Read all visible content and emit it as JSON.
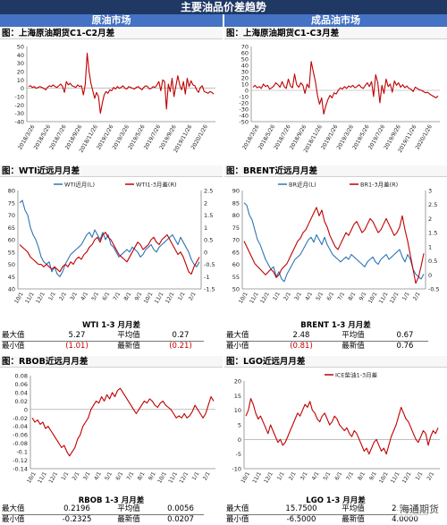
{
  "banner": "主要油品价差趋势",
  "columns": {
    "left": "原油市场",
    "right": "成品油市场"
  },
  "colors": {
    "red": "#c00000",
    "blue": "#2e75b6",
    "banner": "#1f3864",
    "header": "#4472c4"
  },
  "panels": {
    "p1": {
      "title": "图：上海原油期货C1-C2月差"
    },
    "p2": {
      "title": "图：上海原油期货C1-C3月差"
    },
    "p3": {
      "title": "图：WTI近远月月差"
    },
    "p4": {
      "title": "图：BRENT近远月月差"
    },
    "p5": {
      "title": "图：RBOB近远月月差"
    },
    "p6": {
      "title": "图：LGO近远月月差"
    }
  },
  "stats": {
    "wti": {
      "title": "WTI 1-3 月月差",
      "max_label": "最大值",
      "max": "5.27",
      "mean_label": "平均值",
      "mean": "0.27",
      "min_label": "最小值",
      "min": "(1.01)",
      "latest_label": "最新值",
      "latest": "(0.21)"
    },
    "brent": {
      "title": "BRENT 1-3 月月差",
      "max_label": "最大值",
      "max": "2.48",
      "mean_label": "平均值",
      "mean": "0.67",
      "min_label": "最小值",
      "min": "(0.81)",
      "latest_label": "最新值",
      "latest": "0.76"
    },
    "rbob": {
      "title": "RBOB 1-3 月月差",
      "max_label": "最大值",
      "max": "0.2196",
      "mean_label": "平均值",
      "mean": "0.0056",
      "min_label": "最小值",
      "min": "-0.2325",
      "latest_label": "最新值",
      "latest": "0.0207"
    },
    "lgo": {
      "title": "LGO 1-3 月月差",
      "max_label": "最大值",
      "max": "15.7500",
      "mean_label": "平均值",
      "mean": "2.5824",
      "min_label": "最小值",
      "min": "-6.5000",
      "latest_label": "最新值",
      "latest": "4.0000"
    }
  },
  "watermark": "海通期货",
  "chart_data": [
    {
      "id": "p1",
      "type": "line",
      "title": "图：上海原油期货C1-C2月差",
      "xlabels": [
        "2018/3/26",
        "2018/5/26",
        "2018/7/26",
        "2018/9/26",
        "2018/11/26",
        "2019/1/26",
        "2019/3/26",
        "2019/5/26",
        "2019/7/26",
        "2019/9/26",
        "2019/11/26",
        "2020/1/26"
      ],
      "ylim": [
        -40,
        50
      ],
      "yticks": [
        -40,
        -30,
        -20,
        -10,
        0,
        10,
        20,
        30,
        40,
        50
      ],
      "series": [
        {
          "color": "#c00000",
          "values": [
            2,
            3,
            1,
            2,
            0,
            1,
            2,
            1,
            0,
            -2,
            1,
            3,
            2,
            4,
            2,
            1,
            3,
            5,
            2,
            -5,
            8,
            4,
            6,
            3,
            2,
            1,
            4,
            2,
            3,
            -8,
            5,
            42,
            20,
            6,
            -3,
            -12,
            -5,
            -10,
            -30,
            -18,
            -8,
            -4,
            -6,
            -2,
            -3,
            1,
            -1,
            2,
            0,
            1,
            3,
            0,
            -1,
            2,
            1,
            0,
            -1,
            1,
            2,
            0,
            -2,
            1,
            3,
            2,
            -1,
            0,
            2,
            1,
            4,
            8,
            -3,
            10,
            8,
            -25,
            5,
            -4,
            12,
            -10,
            3,
            15,
            4,
            -2,
            8,
            -7,
            12,
            2,
            9,
            4,
            3,
            -2,
            -5,
            1,
            3,
            -4,
            -5,
            -6,
            -4,
            -5,
            -7
          ]
        }
      ]
    },
    {
      "id": "p2",
      "type": "line",
      "title": "图：上海原油期货C1-C3月差",
      "xlabels": [
        "2018/3/26",
        "2018/5/26",
        "2018/7/26",
        "2018/9/26",
        "2018/11/26",
        "2019/1/26",
        "2019/3/26",
        "2019/5/26",
        "2019/7/26",
        "2019/9/26",
        "2019/11/26",
        "2020/1/26"
      ],
      "ylim": [
        -50,
        70
      ],
      "yticks": [
        -50,
        -40,
        -30,
        -20,
        -10,
        0,
        10,
        20,
        30,
        40,
        50,
        60,
        70
      ],
      "series": [
        {
          "color": "#c00000",
          "values": [
            5,
            8,
            4,
            6,
            3,
            10,
            6,
            8,
            2,
            4,
            7,
            12,
            9,
            5,
            14,
            6,
            3,
            18,
            7,
            4,
            26,
            9,
            5,
            12,
            8,
            -5,
            10,
            4,
            46,
            30,
            14,
            -8,
            -22,
            -12,
            -38,
            -25,
            -15,
            -8,
            -12,
            -4,
            -6,
            0,
            4,
            2,
            6,
            3,
            7,
            5,
            8,
            4,
            6,
            9,
            5,
            3,
            8,
            12,
            6,
            14,
            -10,
            25,
            12,
            -20,
            8,
            -5,
            18,
            6,
            10,
            -3,
            15,
            8,
            12,
            5,
            9,
            4,
            7,
            3,
            2,
            -2,
            5,
            3,
            1,
            0,
            -2,
            -4,
            -3,
            -6,
            -8,
            -10,
            -12,
            -9
          ]
        }
      ]
    },
    {
      "id": "p3",
      "type": "line",
      "title": "图：WTI近远月月差",
      "xlabels": [
        "10/1",
        "11/1",
        "12/1",
        "1/1",
        "2/1",
        "3/1",
        "4/1",
        "5/1",
        "6/1",
        "7/1",
        "8/1",
        "9/1",
        "10/1",
        "11/1",
        "12/1",
        "1/1",
        "2/1"
      ],
      "ylim_left": [
        40,
        80
      ],
      "yticks_left": [
        40,
        45,
        50,
        55,
        60,
        65,
        70,
        75,
        80
      ],
      "ylim_right": [
        -1.5,
        2.5
      ],
      "yticks_right": [
        -1.5,
        -1,
        -0.5,
        0,
        0.5,
        1,
        1.5,
        2,
        2.5
      ],
      "legend": [
        "WTI近月(L)",
        "WTI1-3月差(R)"
      ],
      "legend_position": "top",
      "series": [
        {
          "name": "WTI近月(L)",
          "axis": "left",
          "color": "#2e75b6",
          "values": [
            75,
            76,
            72,
            70,
            65,
            62,
            60,
            57,
            53,
            51,
            50,
            51,
            47,
            49,
            46,
            45,
            47,
            50,
            52,
            54,
            55,
            56,
            57,
            58,
            60,
            62,
            63,
            61,
            64,
            62,
            60,
            63,
            60,
            62,
            58,
            57,
            55,
            53,
            54,
            55,
            56,
            55,
            57,
            56,
            55,
            53,
            54,
            56,
            57,
            58,
            56,
            55,
            57,
            58,
            59,
            60,
            61,
            62,
            60,
            58,
            61,
            59,
            57,
            55,
            52,
            50,
            49,
            51
          ]
        },
        {
          "name": "WTI1-3月差(R)",
          "axis": "right",
          "color": "#c00000",
          "values": [
            0.3,
            0.2,
            0.1,
            0,
            -0.2,
            -0.3,
            -0.4,
            -0.5,
            -0.5,
            -0.6,
            -0.5,
            -0.6,
            -0.7,
            -0.6,
            -0.7,
            -0.8,
            -0.6,
            -0.5,
            -0.6,
            -0.4,
            -0.5,
            -0.3,
            -0.2,
            -0.3,
            -0.1,
            0,
            0.2,
            0.3,
            0.5,
            0.6,
            0.4,
            0.7,
            0.8,
            0.6,
            0.5,
            0.3,
            0.1,
            -0.1,
            -0.2,
            -0.3,
            -0.4,
            -0.2,
            0,
            0.2,
            0.4,
            0.3,
            0.1,
            0.2,
            0.3,
            0.5,
            0.6,
            0.4,
            0.3,
            0.5,
            0.6,
            0.7,
            0.5,
            0.3,
            0.1,
            -0.1,
            0,
            -0.2,
            -0.5,
            -0.8,
            -0.9,
            -0.6,
            -0.4,
            -0.21
          ]
        }
      ]
    },
    {
      "id": "p4",
      "type": "line",
      "title": "图：BRENT近远月月差",
      "xlabels": [
        "10/1",
        "11/1",
        "12/1",
        "1/1",
        "2/1",
        "3/1",
        "4/1",
        "5/1",
        "6/1",
        "7/1",
        "8/1",
        "9/1",
        "10/1",
        "11/1",
        "12/1",
        "1/1",
        "2/1"
      ],
      "ylim_left": [
        50,
        90
      ],
      "yticks_left": [
        50,
        55,
        60,
        65,
        70,
        75,
        80,
        85,
        90
      ],
      "ylim_right": [
        -0.5,
        3
      ],
      "yticks_right": [
        -0.5,
        0,
        0.5,
        1,
        1.5,
        2,
        2.5,
        3
      ],
      "legend": [
        "BR近月(L)",
        "BR1-3月差(R)"
      ],
      "legend_position": "top",
      "series": [
        {
          "name": "BR近月(L)",
          "axis": "left",
          "color": "#2e75b6",
          "values": [
            85,
            84,
            80,
            78,
            74,
            70,
            68,
            65,
            62,
            60,
            58,
            59,
            55,
            57,
            54,
            53,
            56,
            58,
            60,
            62,
            63,
            64,
            66,
            68,
            70,
            71,
            69,
            72,
            70,
            68,
            71,
            68,
            66,
            64,
            63,
            62,
            61,
            62,
            63,
            62,
            64,
            63,
            62,
            61,
            60,
            59,
            61,
            62,
            63,
            61,
            60,
            62,
            63,
            64,
            62,
            63,
            64,
            65,
            66,
            63,
            61,
            64,
            62,
            58,
            56,
            55,
            54,
            56
          ]
        },
        {
          "name": "BR1-3月差(R)",
          "axis": "right",
          "color": "#c00000",
          "values": [
            1.2,
            1.0,
            0.8,
            0.6,
            0.4,
            0.3,
            0.2,
            0.1,
            0,
            0.1,
            0.2,
            0.1,
            -0.1,
            0,
            0.2,
            0.3,
            0.4,
            0.6,
            0.8,
            1.0,
            1.2,
            1.3,
            1.5,
            1.6,
            1.8,
            2.0,
            2.2,
            2.4,
            2.1,
            2.3,
            1.9,
            1.7,
            1.4,
            1.2,
            1.0,
            0.9,
            1.1,
            1.3,
            1.5,
            1.4,
            1.6,
            1.8,
            1.9,
            1.7,
            1.5,
            1.6,
            1.8,
            2.0,
            1.9,
            1.7,
            1.5,
            1.6,
            1.8,
            2.0,
            1.8,
            1.6,
            1.4,
            1.5,
            1.7,
            2.1,
            1.6,
            1.2,
            0.7,
            0.2,
            -0.3,
            -0.1,
            0.3,
            0.76
          ]
        }
      ]
    },
    {
      "id": "p5",
      "type": "line",
      "title": "图：RBOB近远月月差",
      "xlabels": [
        "10/1",
        "11/1",
        "12/1",
        "1/1",
        "2/1",
        "3/1",
        "4/1",
        "5/1",
        "6/1",
        "7/1",
        "8/1",
        "9/1",
        "10/1",
        "11/1",
        "12/1",
        "1/1",
        "2/1"
      ],
      "ylim": [
        -0.14,
        0.08
      ],
      "yticks": [
        -0.14,
        -0.12,
        -0.1,
        -0.08,
        -0.06,
        -0.04,
        -0.02,
        0,
        0.02,
        0.04,
        0.06,
        0.08
      ],
      "series": [
        {
          "color": "#c00000",
          "values": [
            -0.02,
            -0.03,
            -0.025,
            -0.035,
            -0.03,
            -0.045,
            -0.04,
            -0.05,
            -0.06,
            -0.07,
            -0.08,
            -0.09,
            -0.085,
            -0.1,
            -0.11,
            -0.1,
            -0.09,
            -0.07,
            -0.06,
            -0.04,
            -0.03,
            -0.02,
            0,
            0.01,
            0.02,
            0.015,
            0.03,
            0.02,
            0.035,
            0.025,
            0.04,
            0.03,
            0.045,
            0.05,
            0.04,
            0.03,
            0.02,
            0.01,
            0,
            -0.01,
            0,
            0.01,
            0.02,
            0.015,
            0.025,
            0.02,
            0.01,
            0.005,
            0.015,
            0.02,
            0.01,
            0.005,
            0,
            -0.01,
            -0.02,
            -0.015,
            -0.02,
            -0.01,
            -0.02,
            -0.015,
            -0.005,
            0.01,
            0,
            -0.01,
            -0.02,
            -0.01,
            0.01,
            0.03,
            0.02
          ]
        }
      ]
    },
    {
      "id": "p6",
      "type": "line",
      "title": "图：LGO近远月月差",
      "xlabels": [
        "10/1",
        "11/1",
        "12/1",
        "1/1",
        "2/1",
        "3/1",
        "4/1",
        "5/1",
        "6/1",
        "7/1",
        "8/1",
        "9/1",
        "10/1",
        "11/1",
        "12/1",
        "1/1",
        "2/1"
      ],
      "ylim": [
        -10,
        20
      ],
      "yticks": [
        -10,
        -5,
        0,
        5,
        10,
        15,
        20
      ],
      "legend": [
        "ICE柴油1-3月差"
      ],
      "legend_position": "top",
      "series": [
        {
          "name": "ICE柴油1-3月差",
          "color": "#c00000",
          "values": [
            8,
            10,
            14,
            12,
            9,
            7,
            8,
            6,
            4,
            2,
            5,
            3,
            1,
            -1,
            0,
            -2,
            -1,
            1,
            3,
            5,
            7,
            9,
            8,
            10,
            12,
            11,
            13,
            10,
            9,
            7,
            6,
            8,
            9,
            7,
            5,
            6,
            8,
            7,
            5,
            4,
            3,
            4,
            2,
            1,
            3,
            2,
            0,
            -2,
            -4,
            -3,
            -5,
            -3,
            -1,
            0,
            -2,
            -4,
            -3,
            -5,
            -2,
            1,
            3,
            5,
            8,
            11,
            9,
            7,
            6,
            4,
            2,
            0,
            -1,
            1,
            3,
            2,
            -2,
            1,
            3,
            2,
            4
          ]
        }
      ]
    }
  ]
}
